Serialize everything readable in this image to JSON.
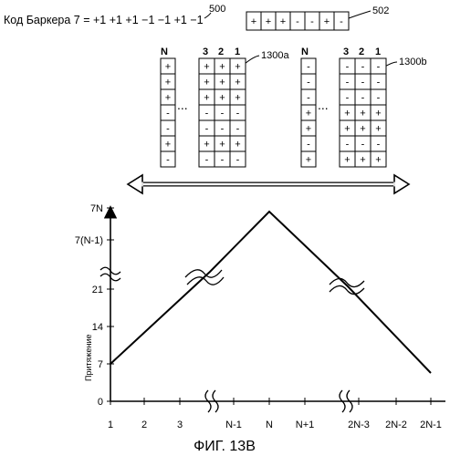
{
  "header": {
    "code_text": "Код Баркера 7 = +1 +1 +1 −1 −1 +1 −1",
    "code_ref": "500",
    "sequence": [
      "+",
      "+",
      "+",
      "-",
      "-",
      "+",
      "-"
    ],
    "sequence_ref": "502"
  },
  "matrices": [
    {
      "ref": "1300a",
      "single_label": "N",
      "single_col": [
        "+",
        "+",
        "+",
        "-",
        "-",
        "+",
        "-"
      ],
      "ellipsis": "...",
      "col_labels": [
        "3",
        "2",
        "1"
      ],
      "grid": [
        [
          "+",
          "+",
          "+"
        ],
        [
          "+",
          "+",
          "+"
        ],
        [
          "+",
          "+",
          "+"
        ],
        [
          "-",
          "-",
          "-"
        ],
        [
          "-",
          "-",
          "-"
        ],
        [
          "+",
          "+",
          "+"
        ],
        [
          "-",
          "-",
          "-"
        ]
      ]
    },
    {
      "ref": "1300b",
      "single_label": "N",
      "single_col": [
        "-",
        "-",
        "-",
        "+",
        "+",
        "-",
        "+"
      ],
      "ellipsis": "...",
      "col_labels": [
        "3",
        "2",
        "1"
      ],
      "grid": [
        [
          "-",
          "-",
          "-"
        ],
        [
          "-",
          "-",
          "-"
        ],
        [
          "-",
          "-",
          "-"
        ],
        [
          "+",
          "+",
          "+"
        ],
        [
          "+",
          "+",
          "+"
        ],
        [
          "-",
          "-",
          "-"
        ],
        [
          "+",
          "+",
          "+"
        ]
      ]
    }
  ],
  "graph": {
    "ylabel": "Притяжение",
    "y_ticks": [
      "0",
      "7",
      "14",
      "21",
      "7(N-1)",
      "7N"
    ],
    "x_ticks": [
      "1",
      "2",
      "3",
      "N-1",
      "N",
      "N+1",
      "2N-3",
      "2N-2",
      "2N-1"
    ]
  },
  "caption": "ФИГ. 13В"
}
